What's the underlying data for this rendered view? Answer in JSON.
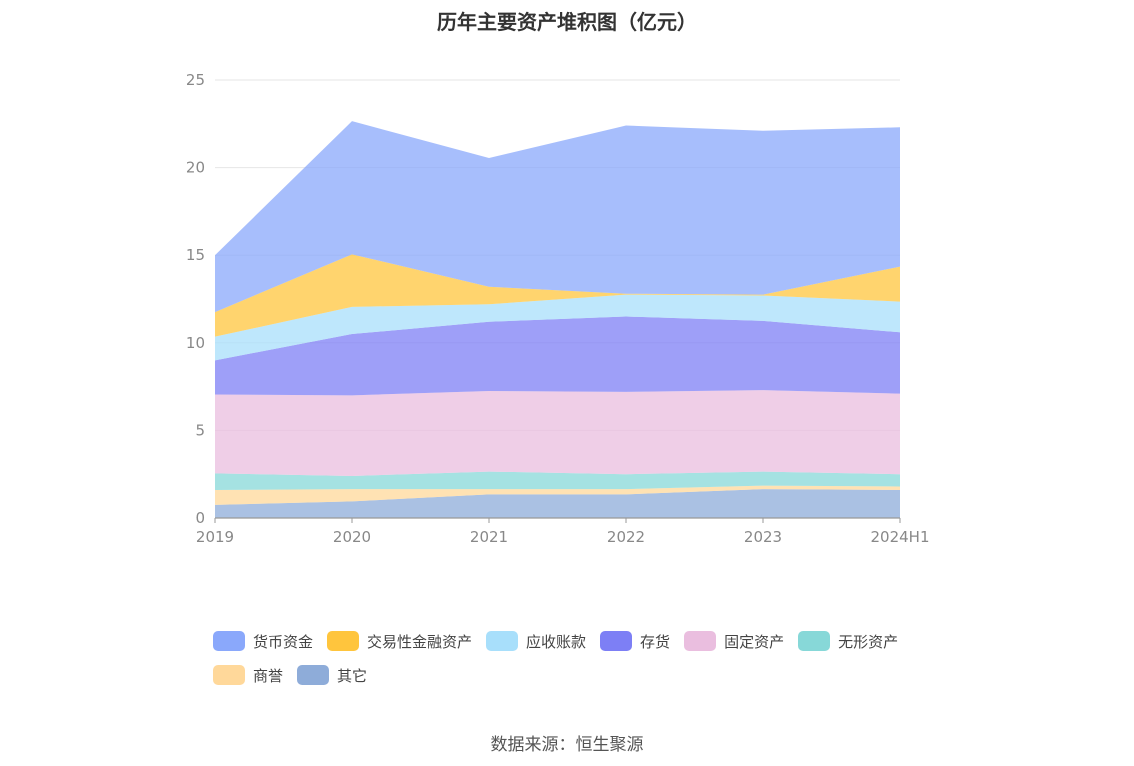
{
  "chart_data": {
    "type": "area",
    "stacked": true,
    "title": "历年主要资产堆积图（亿元）",
    "categories": [
      "2019",
      "2020",
      "2021",
      "2022",
      "2023",
      "2024H1"
    ],
    "ylim": [
      0,
      25
    ],
    "yticks": [
      "0",
      "5",
      "10",
      "15",
      "20",
      "25"
    ],
    "grid": true,
    "legend_position": "bottom",
    "series": [
      {
        "name": "其它",
        "color": "#8eacd9",
        "values": [
          0.75,
          0.95,
          1.35,
          1.35,
          1.65,
          1.6
        ]
      },
      {
        "name": "商誉",
        "color": "#ffd89a",
        "values": [
          0.85,
          0.7,
          0.3,
          0.3,
          0.2,
          0.2
        ]
      },
      {
        "name": "无形资产",
        "color": "#87d8d8",
        "values": [
          0.95,
          0.75,
          1.0,
          0.85,
          0.8,
          0.7
        ]
      },
      {
        "name": "固定资产",
        "color": "#eabedf",
        "values": [
          4.5,
          4.6,
          4.6,
          4.7,
          4.65,
          4.6
        ]
      },
      {
        "name": "存货",
        "color": "#7d7ff5",
        "values": [
          1.95,
          3.5,
          3.95,
          4.3,
          3.95,
          3.5
        ]
      },
      {
        "name": "应收账款",
        "color": "#a8dffb",
        "values": [
          1.35,
          1.55,
          1.0,
          1.25,
          1.45,
          1.75
        ]
      },
      {
        "name": "交易性金融资产",
        "color": "#ffc53d",
        "values": [
          1.4,
          3.0,
          1.0,
          0.05,
          0.05,
          2.0
        ]
      },
      {
        "name": "货币资金",
        "color": "#8aa8fb",
        "values": [
          3.25,
          7.6,
          7.35,
          9.6,
          9.35,
          7.95
        ]
      }
    ],
    "legend_order": [
      "货币资金",
      "交易性金融资产",
      "应收账款",
      "存货",
      "固定资产",
      "无形资产",
      "商誉",
      "其它"
    ]
  },
  "source_text": "数据来源：恒生聚源"
}
